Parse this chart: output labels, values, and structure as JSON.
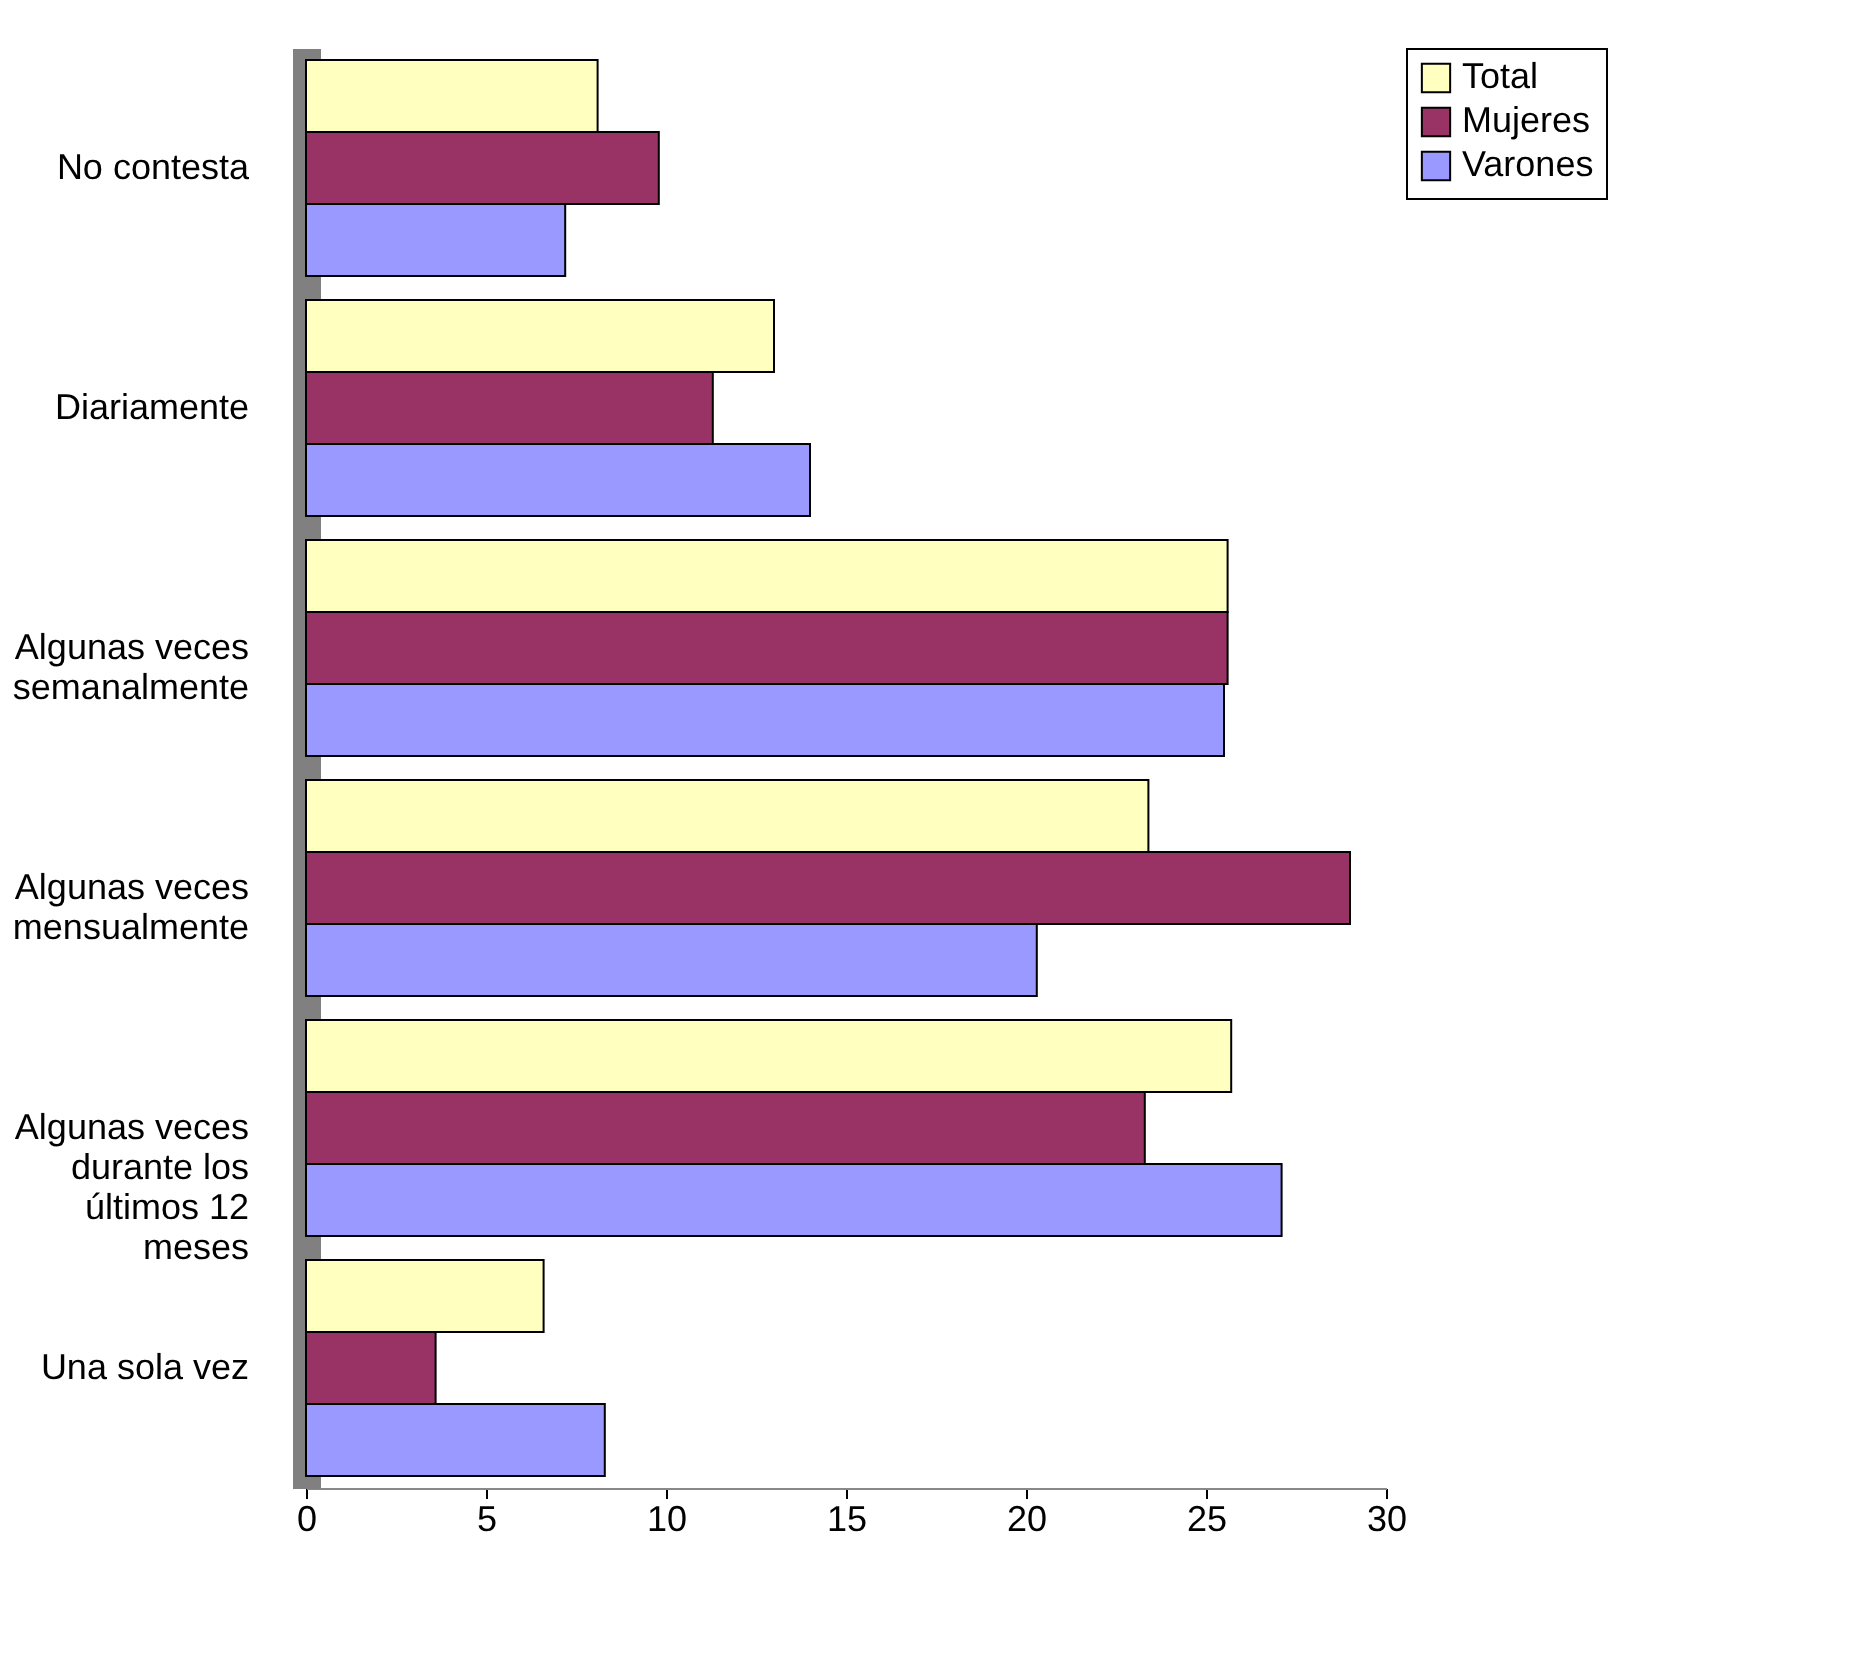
{
  "chart_data": {
    "type": "bar",
    "orientation": "horizontal",
    "categories": [
      "No contesta",
      "Diariamente",
      "Algunas veces semanalmente",
      "Algunas veces mensualmente",
      "Algunas veces durante los últimos 12 meses",
      "Una sola vez"
    ],
    "series": [
      {
        "name": "Total",
        "color": "#ffffc0",
        "values": [
          8.1,
          13.0,
          25.6,
          23.4,
          25.7,
          6.6
        ]
      },
      {
        "name": "Mujeres",
        "color": "#993366",
        "values": [
          9.8,
          11.3,
          25.6,
          29.0,
          23.3,
          3.6
        ]
      },
      {
        "name": "Varones",
        "color": "#9999ff",
        "values": [
          7.2,
          14.0,
          25.5,
          20.3,
          27.1,
          8.3
        ]
      }
    ],
    "xlim": [
      0,
      30
    ],
    "xticks": [
      0,
      5,
      10,
      15,
      20,
      25,
      30
    ],
    "grid": false,
    "legend": "right"
  }
}
